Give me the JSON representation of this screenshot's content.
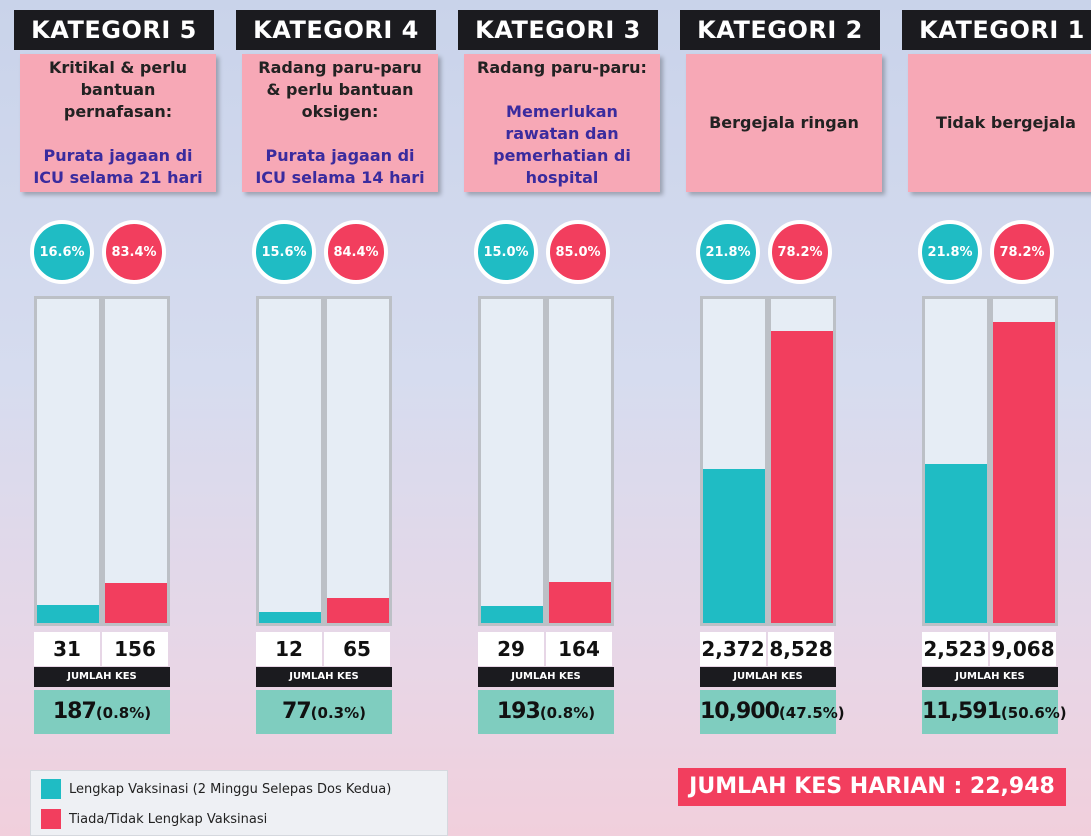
{
  "panels": [
    {
      "title": "KATEGORI 5",
      "description": "Kritikal & perlu bantuan pernafasan:",
      "note": "Purata jagaan di ICU selama 21 hari",
      "vaccinated_pct": "16.6%",
      "unvaccinated_pct": "83.4%",
      "vaccinated": {
        "value": 31,
        "label": "31"
      },
      "unvaccinated": {
        "value": 156,
        "label": "156"
      },
      "total_label": "JUMLAH KES",
      "total": "187",
      "share": "(0.8%)"
    },
    {
      "title": "KATEGORI 4",
      "description": "Radang paru-paru & perlu bantuan oksigen:",
      "note": "Purata jagaan di ICU selama 14 hari",
      "vaccinated_pct": "15.6%",
      "unvaccinated_pct": "84.4%",
      "vaccinated": {
        "value": 12,
        "label": "12"
      },
      "unvaccinated": {
        "value": 65,
        "label": "65"
      },
      "total_label": "JUMLAH KES",
      "total": "77",
      "share": "(0.3%)"
    },
    {
      "title": "KATEGORI 3",
      "description": "Radang paru-paru:",
      "note": "Memerlukan rawatan dan pemerhatian di hospital",
      "vaccinated_pct": "15.0%",
      "unvaccinated_pct": "85.0%",
      "vaccinated": {
        "value": 29,
        "label": "29"
      },
      "unvaccinated": {
        "value": 164,
        "label": "164"
      },
      "total_label": "JUMLAH KES",
      "total": "193",
      "share": "(0.8%)"
    },
    {
      "title": "KATEGORI 2",
      "description": "Bergejala ringan",
      "vaccinated_pct": "21.8%",
      "unvaccinated_pct": "78.2%",
      "vaccinated": {
        "value": 2372,
        "label": "2,372"
      },
      "unvaccinated": {
        "value": 8528,
        "label": "8,528"
      },
      "total_label": "JUMLAH KES",
      "total": "10,900",
      "share": "(47.5%)"
    },
    {
      "title": "KATEGORI 1",
      "description": "Tidak bergejala",
      "vaccinated_pct": "21.8%",
      "unvaccinated_pct": "78.2%",
      "vaccinated": {
        "value": 2523,
        "label": "2,523"
      },
      "unvaccinated": {
        "value": 9068,
        "label": "9,068"
      },
      "total_label": "JUMLAH KES",
      "total": "11,591",
      "share": "(50.6%)"
    }
  ],
  "legend": [
    {
      "label": "Lengkap Vaksinasi (2 Minggu Selepas Dos Kedua)",
      "color": "#1fbcc4"
    },
    {
      "label": "Tiada/Tidak Lengkap Vaksinasi",
      "color": "#f23e5e"
    }
  ],
  "daily_total": "JUMLAH KES HARIAN : 22,948"
}
